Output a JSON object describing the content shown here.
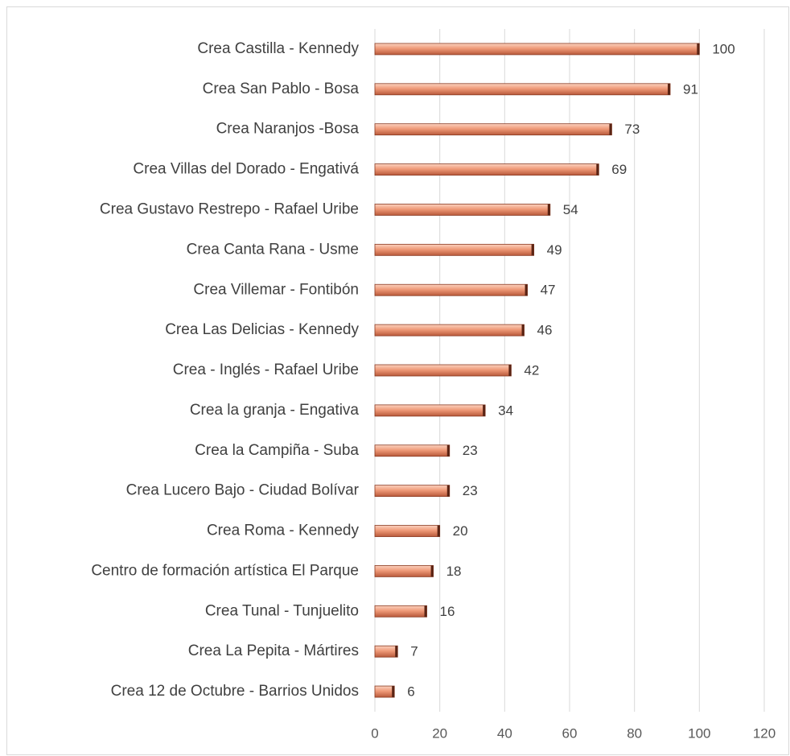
{
  "chart_data": {
    "type": "barh",
    "categories": [
      "Crea Castilla - Kennedy",
      "Crea San Pablo - Bosa",
      "Crea Naranjos -Bosa",
      "Crea Villas del Dorado - Engativá",
      "Crea Gustavo Restrepo  - Rafael Uribe",
      "Crea Canta Rana - Usme",
      "Crea Villemar - Fontibón",
      "Crea Las Delicias - Kennedy",
      "Crea - Inglés - Rafael Uribe",
      "Crea la granja - Engativa",
      "Crea la Campiña - Suba",
      "Crea Lucero Bajo - Ciudad Bolívar",
      "Crea Roma - Kennedy",
      "Centro de formación artística El Parque",
      "Crea Tunal - Tunjuelito",
      "Crea La Pepita - Mártires",
      "Crea 12 de Octubre - Barrios Unidos"
    ],
    "values": [
      100,
      91,
      73,
      69,
      54,
      49,
      47,
      46,
      42,
      34,
      23,
      23,
      20,
      18,
      16,
      7,
      6
    ],
    "color": "#e8876a",
    "xlim": [
      0,
      120
    ],
    "xticks": [
      0,
      20,
      40,
      60,
      80,
      100,
      120
    ],
    "grid": true
  }
}
